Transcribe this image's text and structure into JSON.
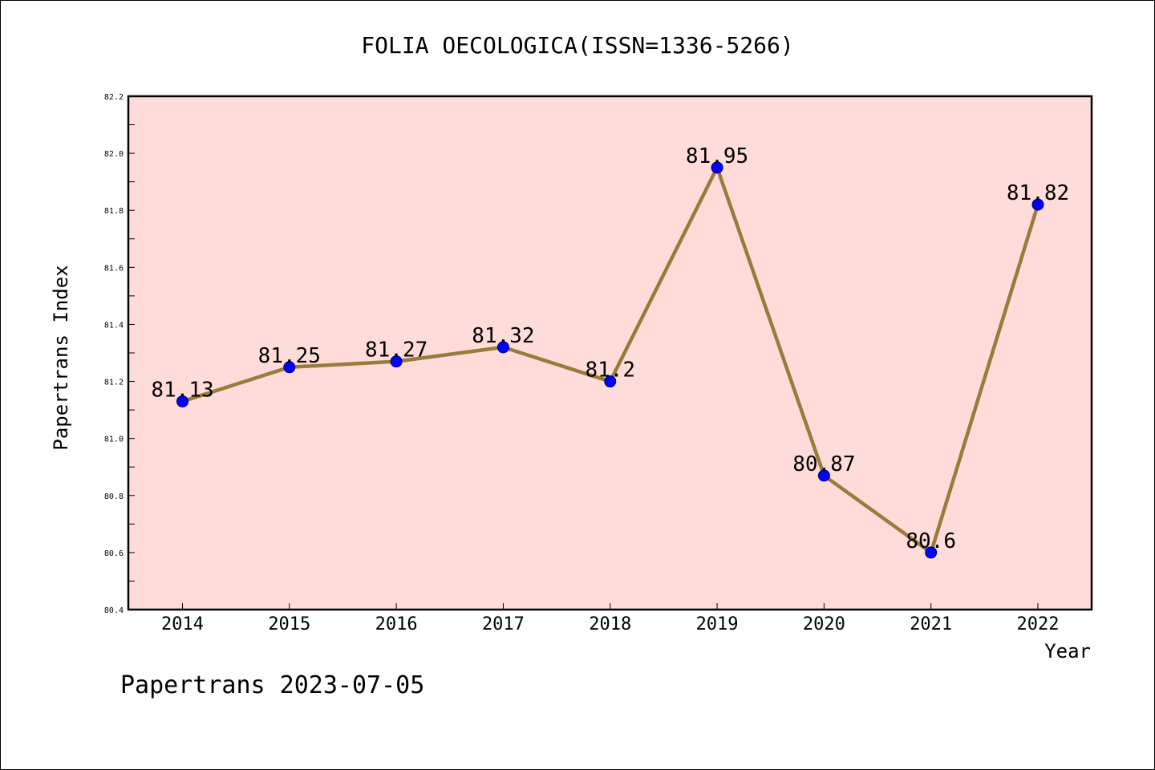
{
  "chart_data": {
    "type": "line",
    "title": "FOLIA OECOLOGICA(ISSN=1336-5266)",
    "xlabel": "Year",
    "ylabel": "Papertrans Index",
    "categories": [
      "2014",
      "2015",
      "2016",
      "2017",
      "2018",
      "2019",
      "2020",
      "2021",
      "2022"
    ],
    "series": [
      {
        "values": [
          81.13,
          81.25,
          81.27,
          81.32,
          81.2,
          81.95,
          80.87,
          80.6,
          81.82
        ],
        "labels": [
          "81.13",
          "81.25",
          "81.27",
          "81.32",
          "81.2",
          "81.95",
          "80.87",
          "80.6",
          "81.82"
        ]
      }
    ],
    "ylim": [
      80.4,
      82.2
    ],
    "yticks": [
      "80.4",
      "80.6",
      "80.8",
      "81.0",
      "81.2",
      "81.4",
      "81.6",
      "81.8",
      "82.0",
      "82.2"
    ],
    "grid": false,
    "legend": "none",
    "colors": {
      "plot_background": "#FFDCDA",
      "line": "#9A7B3A",
      "marker": "#0000FF"
    }
  },
  "footer": "Papertrans 2023-07-05"
}
